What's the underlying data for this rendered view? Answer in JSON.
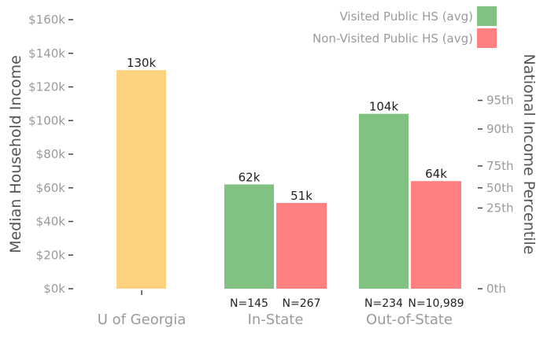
{
  "chart_data": {
    "type": "bar",
    "ylabel": "Median Household Income",
    "y2label": "National Income Percentile",
    "ylim": [
      0,
      160000
    ],
    "yticks": [
      {
        "value": 0,
        "label": "$0k"
      },
      {
        "value": 20000,
        "label": "$20k"
      },
      {
        "value": 40000,
        "label": "$40k"
      },
      {
        "value": 60000,
        "label": "$60k"
      },
      {
        "value": 80000,
        "label": "$80k"
      },
      {
        "value": 100000,
        "label": "$100k"
      },
      {
        "value": 120000,
        "label": "$120k"
      },
      {
        "value": 140000,
        "label": "$140k"
      },
      {
        "value": 160000,
        "label": "$160k"
      }
    ],
    "y2ticks": [
      {
        "value": 0,
        "label": "0th"
      },
      {
        "value": 48000,
        "label": "25th"
      },
      {
        "value": 60000,
        "label": "50th"
      },
      {
        "value": 73000,
        "label": "75th"
      },
      {
        "value": 95000,
        "label": "90th"
      },
      {
        "value": 112000,
        "label": "95th"
      }
    ],
    "categories": [
      "U of Georgia",
      "In-State",
      "Out-of-State"
    ],
    "bars": [
      {
        "category": "U of Georgia",
        "value": 130000,
        "label": "130k",
        "color": "#fdd27f",
        "n": ""
      },
      {
        "category": "In-State",
        "series": "Visited Public HS (avg)",
        "value": 62000,
        "label": "62k",
        "color": "#81c282",
        "n": "N=145"
      },
      {
        "category": "In-State",
        "series": "Non-Visited Public HS (avg)",
        "value": 51000,
        "label": "51k",
        "color": "#ff8080",
        "n": "N=267"
      },
      {
        "category": "Out-of-State",
        "series": "Visited Public HS (avg)",
        "value": 104000,
        "label": "104k",
        "color": "#81c282",
        "n": "N=234"
      },
      {
        "category": "Out-of-State",
        "series": "Non-Visited Public HS (avg)",
        "value": 64000,
        "label": "64k",
        "color": "#ff8080",
        "n": "N=10,989"
      }
    ],
    "legend": {
      "position": "top-right",
      "entries": [
        {
          "name": "Visited Public HS (avg)",
          "color": "#81c282"
        },
        {
          "name": "Non-Visited Public HS (avg)",
          "color": "#ff8080"
        }
      ]
    },
    "grid": false
  }
}
